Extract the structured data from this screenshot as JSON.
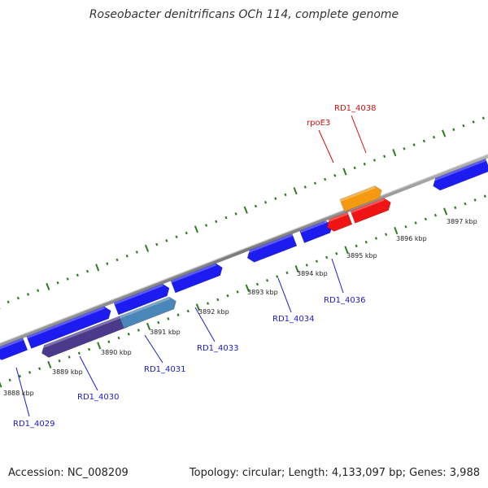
{
  "title": "Roseobacter denitrificans OCh 114, complete genome",
  "footer": {
    "accession": "Accession: NC_008209",
    "summary": "Topology: circular; Length: 4,133,097 bp; Genes: 3,988"
  },
  "colors": {
    "backbone": "#8a8a8a",
    "tick": "#2e7d1e",
    "gene_blue": "#1c1cf0",
    "gene_red": "#f01414",
    "gene_orange": "#f59a10",
    "gene_purple": "#4b3a8c",
    "gene_steel": "#4a86b8",
    "label_blue": "#1a1acc",
    "label_red": "#d01010",
    "scale_label": "#222222"
  },
  "scale_labels": [
    "3888 kbp",
    "3889 kbp",
    "3890 kbp",
    "3891 kbp",
    "3892 kbp",
    "3893 kbp",
    "3894 kbp",
    "3895 kbp",
    "3896 kbp",
    "3897 kbp"
  ],
  "gene_labels": [
    {
      "text": "RD1_4029",
      "color": "label_blue"
    },
    {
      "text": "RD1_4030",
      "color": "label_blue"
    },
    {
      "text": "RD1_4031",
      "color": "label_blue"
    },
    {
      "text": "RD1_4033",
      "color": "label_blue"
    },
    {
      "text": "RD1_4034",
      "color": "label_blue"
    },
    {
      "text": "RD1_4036",
      "color": "label_blue"
    },
    {
      "text": "rpoE3",
      "color": "label_red"
    },
    {
      "text": "RD1_4038",
      "color": "label_red"
    }
  ]
}
